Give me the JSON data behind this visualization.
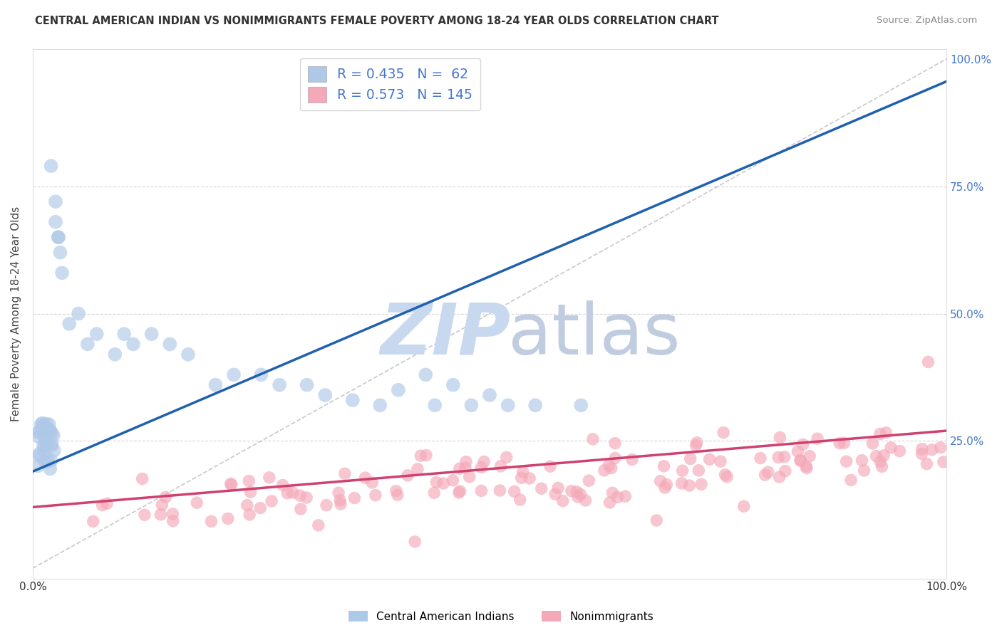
{
  "title": "CENTRAL AMERICAN INDIAN VS NONIMMIGRANTS FEMALE POVERTY AMONG 18-24 YEAR OLDS CORRELATION CHART",
  "source": "Source: ZipAtlas.com",
  "ylabel": "Female Poverty Among 18-24 Year Olds",
  "color1": "#aec8e8",
  "color2": "#f4a8b8",
  "line_color1": "#2060b0",
  "line_color2": "#d04070",
  "diagonal_color": "#bbbbbb",
  "background_color": "#ffffff",
  "legend_R1": "R = 0.435",
  "legend_N1": "N =  62",
  "legend_R2": "R = 0.573",
  "legend_N2": "N = 145",
  "legend_label1": "Central American Indians",
  "legend_label2": "Nonimmigrants",
  "legend_text_color": "#4477cc",
  "tick_color": "#4477cc",
  "title_color": "#333333",
  "source_color": "#888888",
  "grid_color": "#cccccc",
  "watermark_color": "#c8d8ee",
  "watermark2_color": "#c0cce0"
}
